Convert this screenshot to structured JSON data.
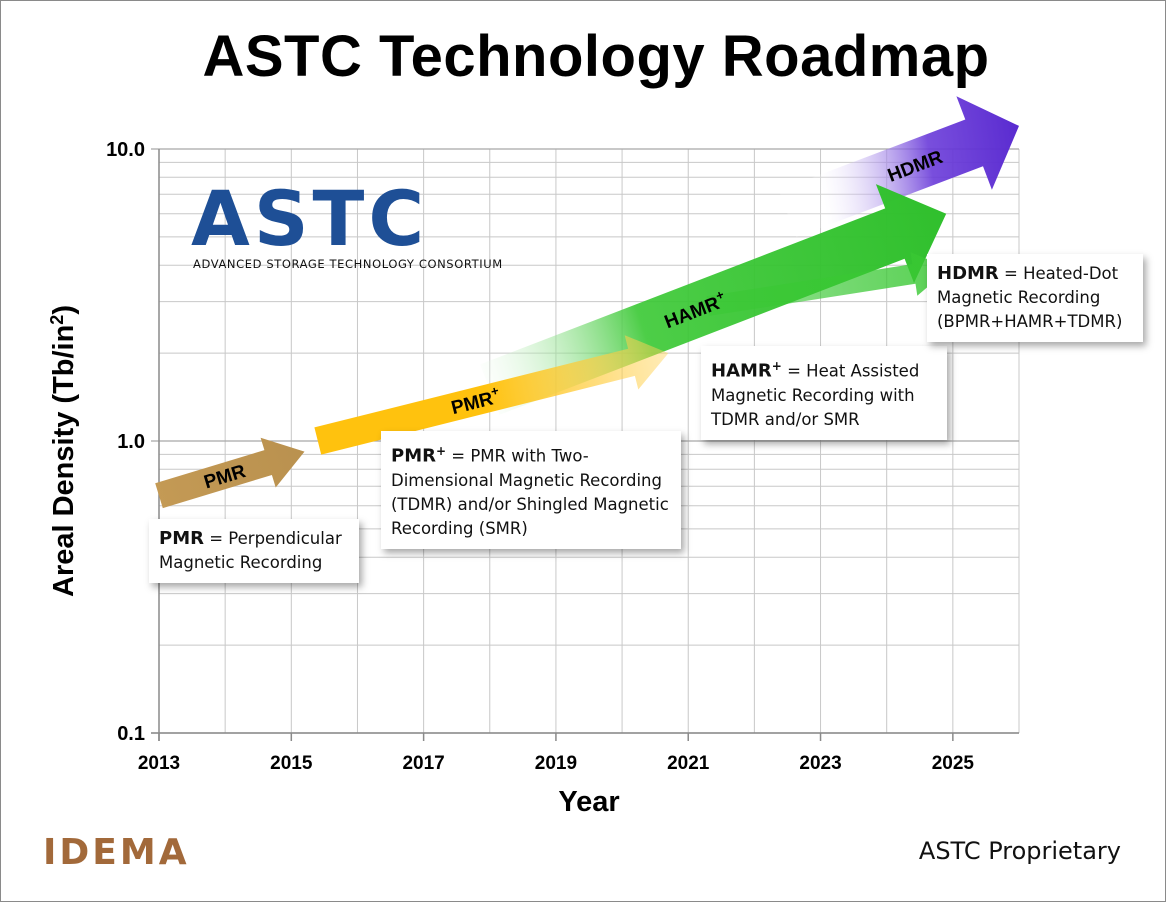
{
  "slide": {
    "title": "ASTC Technology Roadmap",
    "footer": "ASTC Proprietary",
    "idema_logo": "IDEMA",
    "astc_logo": {
      "name": "ASTC",
      "subtitle": "ADVANCED STORAGE TECHNOLOGY CONSORTIUM"
    }
  },
  "chart_data": {
    "type": "line",
    "title": "ASTC Technology Roadmap",
    "xlabel": "Year",
    "ylabel": "Areal Density (Tb/in²)",
    "ylabel_parts": {
      "main": "Areal Density (Tb/in",
      "sup": "2",
      "tail": ")"
    },
    "yscale": "log",
    "ylim": [
      0.1,
      10.0
    ],
    "xlim": [
      2013,
      2026
    ],
    "x_ticks": [
      "2013",
      "2015",
      "2017",
      "2019",
      "2021",
      "2023",
      "2025"
    ],
    "y_ticks": [
      "0.1",
      "1.0",
      "10.0"
    ],
    "grid": true,
    "colors": {
      "PMR": "#c49a55",
      "PMR+": "#ffc20e",
      "HAMR+": "#39c833",
      "HDMR": "#6a3bd9"
    },
    "series": [
      {
        "name": "PMR",
        "label": "PMR",
        "x": [
          2013,
          2015.2
        ],
        "y": [
          0.65,
          0.92
        ]
      },
      {
        "name": "PMR+",
        "label": "PMR",
        "label_sup": "+",
        "x": [
          2015.4,
          2020.7
        ],
        "y": [
          1.0,
          2.0
        ]
      },
      {
        "name": "HAMR+",
        "label": "HAMR",
        "label_sup": "+",
        "x": [
          2018.0,
          2024.9
        ],
        "y": [
          1.5,
          6.0
        ]
      },
      {
        "name": "HDMR",
        "label": "HDMR",
        "x": [
          2022.5,
          2026.0
        ],
        "y": [
          6.0,
          12.0
        ]
      }
    ],
    "annotations": [
      {
        "term": "PMR",
        "term_sup": "",
        "text": " = Perpendicular Magnetic Recording"
      },
      {
        "term": "PMR",
        "term_sup": "+",
        "text": " = PMR with Two-Dimensional Magnetic Recording (TDMR) and/or Shingled Magnetic Recording (SMR)"
      },
      {
        "term": "HAMR",
        "term_sup": "+",
        "text": " = Heat Assisted Magnetic Recording with TDMR and/or SMR"
      },
      {
        "term": "HDMR",
        "term_sup": "",
        "text": " = Heated-Dot Magnetic Recording (BPMR+HAMR+TDMR)"
      }
    ]
  }
}
